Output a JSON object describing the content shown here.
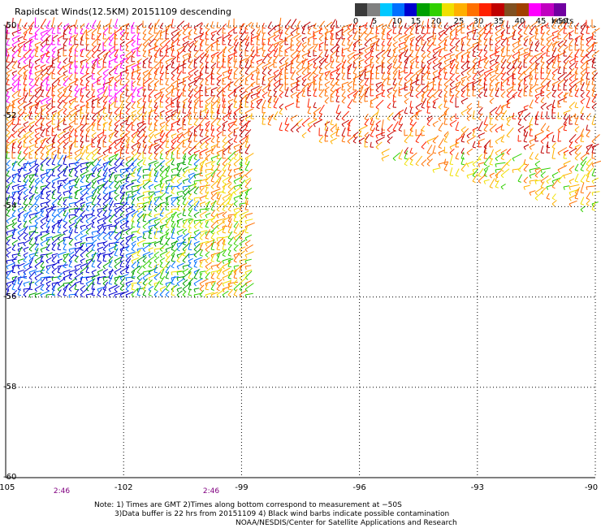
{
  "header": {
    "title": "Rapidscat Winds(12.5KM) 20151109 descending"
  },
  "legend": {
    "colors": [
      "#3a3a3a",
      "#808080",
      "#00c8ff",
      "#0070ff",
      "#0000d0",
      "#00a000",
      "#30d000",
      "#f0e000",
      "#ffb000",
      "#ff7000",
      "#ff2000",
      "#c00000",
      "#805020",
      "#a04000",
      "#ff00ff",
      "#c000c0",
      "#7000a0"
    ],
    "labels": [
      "0",
      "5",
      "10",
      "15",
      "20",
      "25",
      "30",
      "35",
      "40",
      "45",
      ">50"
    ],
    "units": "knots"
  },
  "map": {
    "latitude_labels": [
      "-50",
      "-52",
      "-54",
      "-56",
      "-58",
      "-60"
    ],
    "longitude_labels": [
      "-105",
      "-102",
      "-99",
      "-96",
      "-93",
      "-90"
    ],
    "time_labels": [
      "2:46",
      "2:46"
    ],
    "lon_range": [
      -105,
      -90
    ],
    "lat_range": [
      -60,
      -50
    ]
  },
  "notes": {
    "line1": "Note: 1) Times are GMT 2)Times along bottom correspond to measurement at −50S",
    "line2": "3)Data buffer is 22 hrs from 20151109 4) Black wind barbs indicate possible contamination",
    "line3": "NOAA/NESDIS/Center for Satellite Applications and Research"
  }
}
